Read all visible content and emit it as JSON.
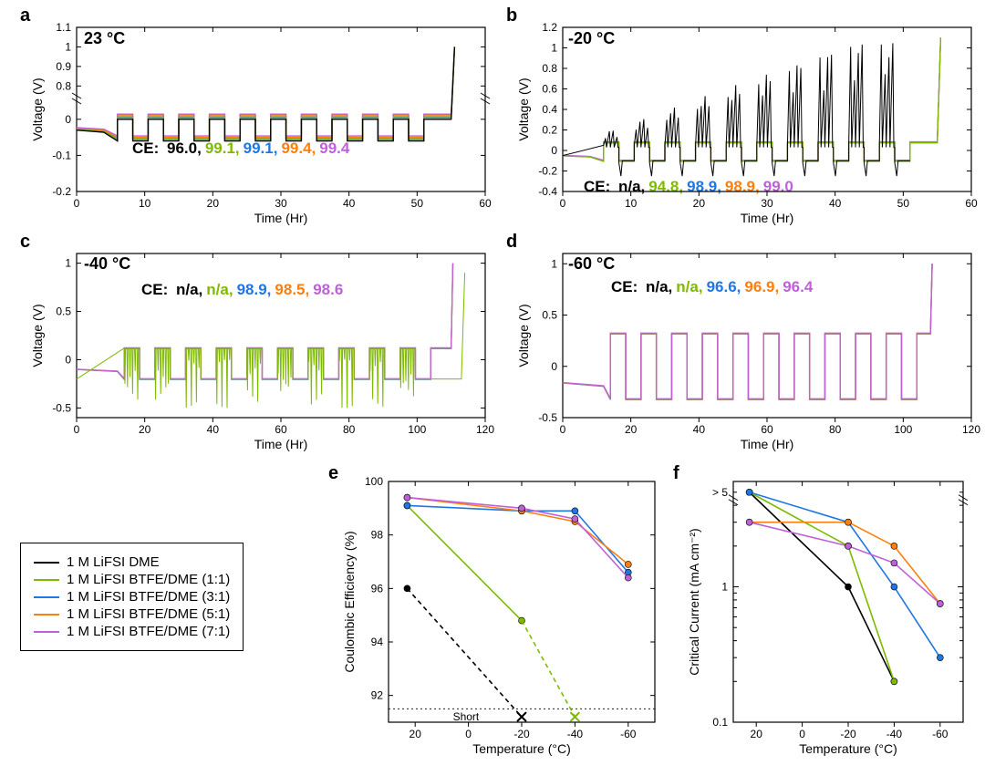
{
  "colors": {
    "series1": "#000000",
    "series2": "#7eba00",
    "series3": "#1f77e4",
    "series4": "#ff7f0e",
    "series5": "#c060d8",
    "axis": "#000000",
    "grid": "#d0d0d0",
    "bg": "#ffffff"
  },
  "legend": {
    "items": [
      {
        "label": "1 M LiFSI DME",
        "color_key": "series1"
      },
      {
        "label": "1 M LiFSI BTFE/DME (1:1)",
        "color_key": "series2"
      },
      {
        "label": "1 M LiFSI BTFE/DME (3:1)",
        "color_key": "series3"
      },
      {
        "label": "1 M LiFSI BTFE/DME (5:1)",
        "color_key": "series4"
      },
      {
        "label": "1 M LiFSI BTFE/DME (7:1)",
        "color_key": "series5"
      }
    ]
  },
  "panel_a": {
    "label": "a",
    "temp": "23 °C",
    "xlabel": "Time (Hr)",
    "ylabel": "Voltage (V)",
    "xlim": [
      0,
      60
    ],
    "xticks": [
      0,
      10,
      20,
      30,
      40,
      50,
      60
    ],
    "ylim": [
      -0.2,
      1.1
    ],
    "yticks": [
      -0.2,
      -0.1,
      0.0,
      0.8,
      0.9,
      1.0,
      1.1
    ],
    "axis_break_y": [
      0.05,
      0.75
    ],
    "ce_prefix": "CE:",
    "ce_values": [
      {
        "text": "96.0",
        "color_key": "series1"
      },
      {
        "text": "99.1",
        "color_key": "series2"
      },
      {
        "text": "99.1",
        "color_key": "series3"
      },
      {
        "text": "99.4",
        "color_key": "series4"
      },
      {
        "text": "99.4",
        "color_key": "series5"
      }
    ],
    "plateau_hi": 0.01,
    "plateau_lo": -0.05,
    "cycle_start": 6,
    "cycle_period": 4.5,
    "cycle_count": 10,
    "end_rise_x": 55,
    "end_rise_y": 1.0,
    "line_width": 1.4
  },
  "panel_b": {
    "label": "b",
    "temp": "-20 °C",
    "xlabel": "Time (Hr)",
    "ylabel": "Voltage (V)",
    "xlim": [
      0,
      60
    ],
    "xticks": [
      0,
      10,
      20,
      30,
      40,
      50,
      60
    ],
    "ylim": [
      -0.4,
      1.2
    ],
    "yticks": [
      -0.4,
      -0.2,
      0.0,
      0.2,
      0.4,
      0.6,
      0.8,
      1.0,
      1.2
    ],
    "ce_prefix": "CE:",
    "ce_values": [
      {
        "text": "n/a",
        "color_key": "series1"
      },
      {
        "text": "94.8",
        "color_key": "series2"
      },
      {
        "text": "98.9",
        "color_key": "series3"
      },
      {
        "text": "98.9",
        "color_key": "series4"
      },
      {
        "text": "99.0",
        "color_key": "series5"
      }
    ],
    "plateau_hi": 0.08,
    "plateau_lo": -0.1,
    "cycle_start": 6,
    "cycle_period": 4.5,
    "cycle_count": 10,
    "end_rise_x": 55,
    "end_rise_y": 1.1,
    "black_spike_max": 1.05,
    "line_width": 1.3
  },
  "panel_c": {
    "label": "c",
    "temp": "-40 °C",
    "xlabel": "Time (Hr)",
    "ylabel": "Voltage (V)",
    "xlim": [
      0,
      120
    ],
    "xticks": [
      0,
      20,
      40,
      60,
      80,
      100,
      120
    ],
    "ylim": [
      -0.6,
      1.1
    ],
    "yticks": [
      -0.5,
      0.0,
      0.5,
      1.0
    ],
    "ce_prefix": "CE:",
    "ce_values": [
      {
        "text": "n/a",
        "color_key": "series1"
      },
      {
        "text": "n/a",
        "color_key": "series2"
      },
      {
        "text": "98.9",
        "color_key": "series3"
      },
      {
        "text": "98.5",
        "color_key": "series4"
      },
      {
        "text": "98.6",
        "color_key": "series5"
      }
    ],
    "plateau_hi": 0.12,
    "plateau_lo": -0.2,
    "cycle_start": 14,
    "cycle_period": 9,
    "cycle_count": 10,
    "end_rise_x": 110,
    "end_rise_y": 1.0,
    "olive_noise_amp": 0.5,
    "line_width": 1.3
  },
  "panel_d": {
    "label": "d",
    "temp": "-60 °C",
    "xlabel": "Time (Hr)",
    "ylabel": "Voltage (V)",
    "xlim": [
      0,
      120
    ],
    "xticks": [
      0,
      20,
      40,
      60,
      80,
      100,
      120
    ],
    "ylim": [
      -0.5,
      1.1
    ],
    "yticks": [
      -0.5,
      0.0,
      0.5,
      1.0
    ],
    "ce_prefix": "CE:",
    "ce_values": [
      {
        "text": "n/a",
        "color_key": "series1"
      },
      {
        "text": "n/a",
        "color_key": "series2"
      },
      {
        "text": "96.6",
        "color_key": "series3"
      },
      {
        "text": "96.9",
        "color_key": "series4"
      },
      {
        "text": "96.4",
        "color_key": "series5"
      }
    ],
    "plateau_hi": 0.32,
    "plateau_lo": -0.32,
    "cycle_start": 14,
    "cycle_period": 9,
    "cycle_count": 10,
    "end_rise_x": 108,
    "end_rise_y": 1.0,
    "line_width": 1.4
  },
  "panel_e": {
    "label": "e",
    "xlabel": "Temperature (°C)",
    "ylabel": "Coulombic Efficiency (%)",
    "xlim": [
      30,
      -70
    ],
    "xticks": [
      20,
      0,
      -20,
      -40,
      -60
    ],
    "ylim": [
      91,
      100
    ],
    "yticks": [
      92,
      94,
      96,
      98,
      100
    ],
    "short_label": "Short",
    "short_y": 91.2,
    "series": [
      {
        "color_key": "series1",
        "pts": [
          [
            23,
            96.0
          ]
        ],
        "fail_at": [
          -20,
          91.2
        ],
        "dashed_from": [
          23,
          96.0
        ]
      },
      {
        "color_key": "series2",
        "pts": [
          [
            23,
            99.1
          ],
          [
            -20,
            94.8
          ]
        ],
        "fail_at": [
          -40,
          91.2
        ],
        "dashed_from": [
          -20,
          94.8
        ]
      },
      {
        "color_key": "series3",
        "pts": [
          [
            23,
            99.1
          ],
          [
            -20,
            98.9
          ],
          [
            -40,
            98.9
          ],
          [
            -60,
            96.6
          ]
        ]
      },
      {
        "color_key": "series4",
        "pts": [
          [
            23,
            99.4
          ],
          [
            -20,
            98.9
          ],
          [
            -40,
            98.5
          ],
          [
            -60,
            96.9
          ]
        ]
      },
      {
        "color_key": "series5",
        "pts": [
          [
            23,
            99.4
          ],
          [
            -20,
            99.0
          ],
          [
            -40,
            98.6
          ],
          [
            -60,
            96.4
          ]
        ]
      }
    ],
    "marker_r": 3.5,
    "line_width": 1.6
  },
  "panel_f": {
    "label": "f",
    "xlabel": "Temperature (°C)",
    "ylabel": "Critical Current (mA cm⁻²)",
    "xlim": [
      30,
      -70
    ],
    "xticks": [
      20,
      0,
      -20,
      -40,
      -60
    ],
    "yscale": "log",
    "ylim": [
      0.1,
      6
    ],
    "yticks_major": [
      0.1,
      1
    ],
    "ytick_top_label": "> 5",
    "series": [
      {
        "color_key": "series1",
        "pts": [
          [
            23,
            5
          ],
          [
            -20,
            1.0
          ],
          [
            -40,
            0.2
          ]
        ]
      },
      {
        "color_key": "series2",
        "pts": [
          [
            23,
            5
          ],
          [
            -20,
            2.0
          ],
          [
            -40,
            0.2
          ]
        ]
      },
      {
        "color_key": "series3",
        "pts": [
          [
            23,
            5
          ],
          [
            -20,
            3.0
          ],
          [
            -40,
            1.0
          ],
          [
            -60,
            0.3
          ]
        ]
      },
      {
        "color_key": "series4",
        "pts": [
          [
            23,
            3.0
          ],
          [
            -20,
            3.0
          ],
          [
            -40,
            2.0
          ],
          [
            -60,
            0.75
          ]
        ]
      },
      {
        "color_key": "series5",
        "pts": [
          [
            23,
            3.0
          ],
          [
            -20,
            2.0
          ],
          [
            -40,
            1.5
          ],
          [
            -60,
            0.75
          ]
        ]
      }
    ],
    "marker_r": 3.5,
    "line_width": 1.6
  },
  "axis_fontsize": 14,
  "tick_fontsize": 12,
  "panel_label_fontsize": 20,
  "temp_label_fontsize": 18,
  "ce_fontsize": 17
}
